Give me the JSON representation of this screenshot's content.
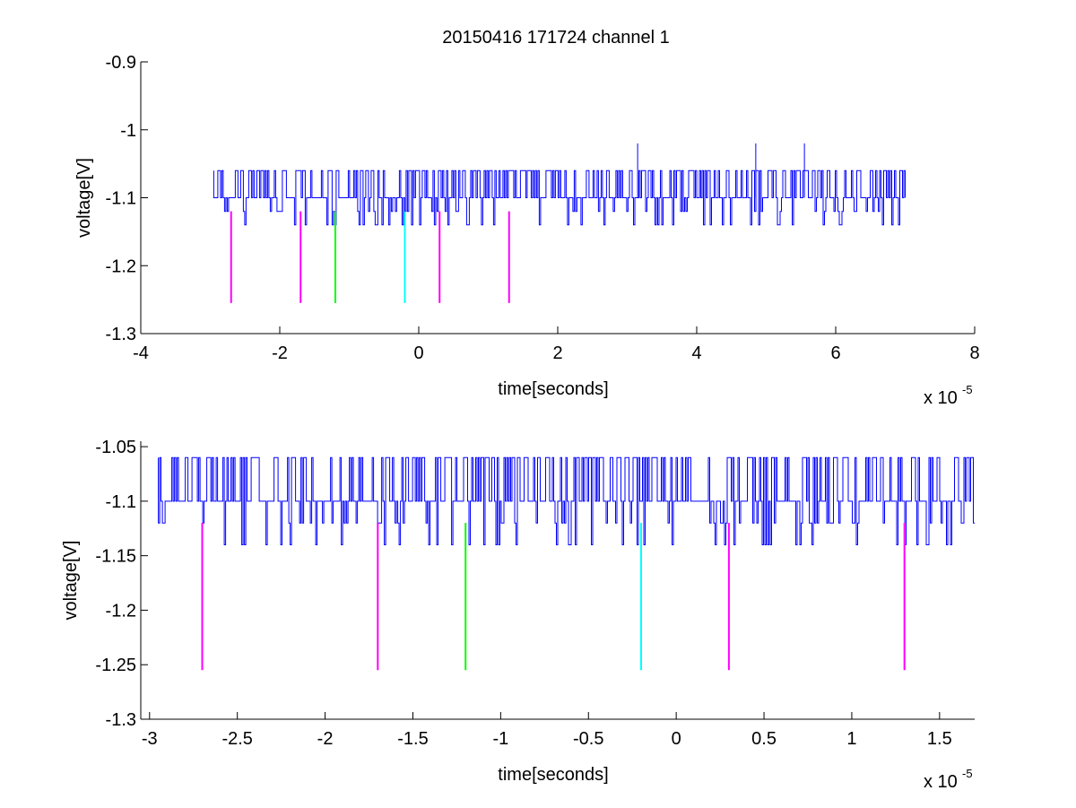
{
  "figure": {
    "title": "20150416 171724 channel 1"
  },
  "chart_data": [
    {
      "type": "line",
      "title": "20150416 171724 channel 1",
      "xlabel": "time[seconds]",
      "ylabel": "voltage[V]",
      "x_multiplier_label": "x 10",
      "x_multiplier_exponent": "-5",
      "xlim": [
        -4,
        8
      ],
      "ylim": [
        -1.3,
        -0.9
      ],
      "x_scale": 1e-05,
      "grid": false,
      "xticks": [
        -4,
        -2,
        0,
        2,
        4,
        6,
        8
      ],
      "xtick_labels": [
        "-4",
        "-2",
        "0",
        "2",
        "4",
        "6",
        "8"
      ],
      "yticks": [
        -1.3,
        -1.2,
        -1.1,
        -1,
        -0.9
      ],
      "ytick_labels": [
        "-1.3",
        "-1.2",
        "-1.1",
        "-1",
        "-0.9"
      ],
      "series": [
        {
          "color": "#0000ff",
          "x_range": [
            -2.95,
            7.0
          ],
          "baseline": -1.1,
          "upper": -1.06,
          "lower": -1.14,
          "spikes": [
            [
              3.15,
              -1.02
            ],
            [
              4.85,
              -1.02
            ],
            [
              5.55,
              -1.02
            ]
          ]
        }
      ],
      "markers": [
        {
          "x": -2.7,
          "y_top": -1.12,
          "y_bottom": -1.255,
          "color": "#ff00ff"
        },
        {
          "x": -1.7,
          "y_top": -1.12,
          "y_bottom": -1.255,
          "color": "#ff00ff"
        },
        {
          "x": -1.2,
          "y_top": -1.12,
          "y_bottom": -1.255,
          "color": "#00ff00"
        },
        {
          "x": -0.2,
          "y_top": -1.12,
          "y_bottom": -1.255,
          "color": "#00ffff"
        },
        {
          "x": 0.3,
          "y_top": -1.12,
          "y_bottom": -1.255,
          "color": "#ff00ff"
        },
        {
          "x": 1.3,
          "y_top": -1.12,
          "y_bottom": -1.255,
          "color": "#ff00ff"
        }
      ]
    },
    {
      "type": "line",
      "xlabel": "time[seconds]",
      "ylabel": "voltage[V]",
      "x_multiplier_label": "x 10",
      "x_multiplier_exponent": "-5",
      "xlim": [
        -3.05,
        1.7
      ],
      "ylim": [
        -1.3,
        -1.045
      ],
      "x_scale": 1e-05,
      "grid": false,
      "xticks": [
        -3,
        -2.5,
        -2,
        -1.5,
        -1,
        -0.5,
        0,
        0.5,
        1,
        1.5
      ],
      "xtick_labels": [
        "-3",
        "-2.5",
        "-2",
        "-1.5",
        "-1",
        "-0.5",
        "0",
        "0.5",
        "1",
        "1.5"
      ],
      "yticks": [
        -1.3,
        -1.25,
        -1.2,
        -1.15,
        -1.1,
        -1.05
      ],
      "ytick_labels": [
        "-1.3",
        "-1.25",
        "-1.2",
        "-1.15",
        "-1.1",
        "-1.05"
      ],
      "series": [
        {
          "color": "#0000ff",
          "x_range": [
            -2.95,
            1.7
          ],
          "baseline": -1.1,
          "upper": -1.06,
          "lower": -1.14,
          "spikes": []
        }
      ],
      "markers": [
        {
          "x": -2.7,
          "y_top": -1.12,
          "y_bottom": -1.255,
          "color": "#ff00ff"
        },
        {
          "x": -1.7,
          "y_top": -1.12,
          "y_bottom": -1.255,
          "color": "#ff00ff"
        },
        {
          "x": -1.2,
          "y_top": -1.12,
          "y_bottom": -1.255,
          "color": "#00ff00"
        },
        {
          "x": -0.2,
          "y_top": -1.12,
          "y_bottom": -1.255,
          "color": "#00ffff"
        },
        {
          "x": 0.3,
          "y_top": -1.12,
          "y_bottom": -1.255,
          "color": "#ff00ff"
        },
        {
          "x": 1.3,
          "y_top": -1.12,
          "y_bottom": -1.255,
          "color": "#ff00ff"
        }
      ]
    }
  ]
}
